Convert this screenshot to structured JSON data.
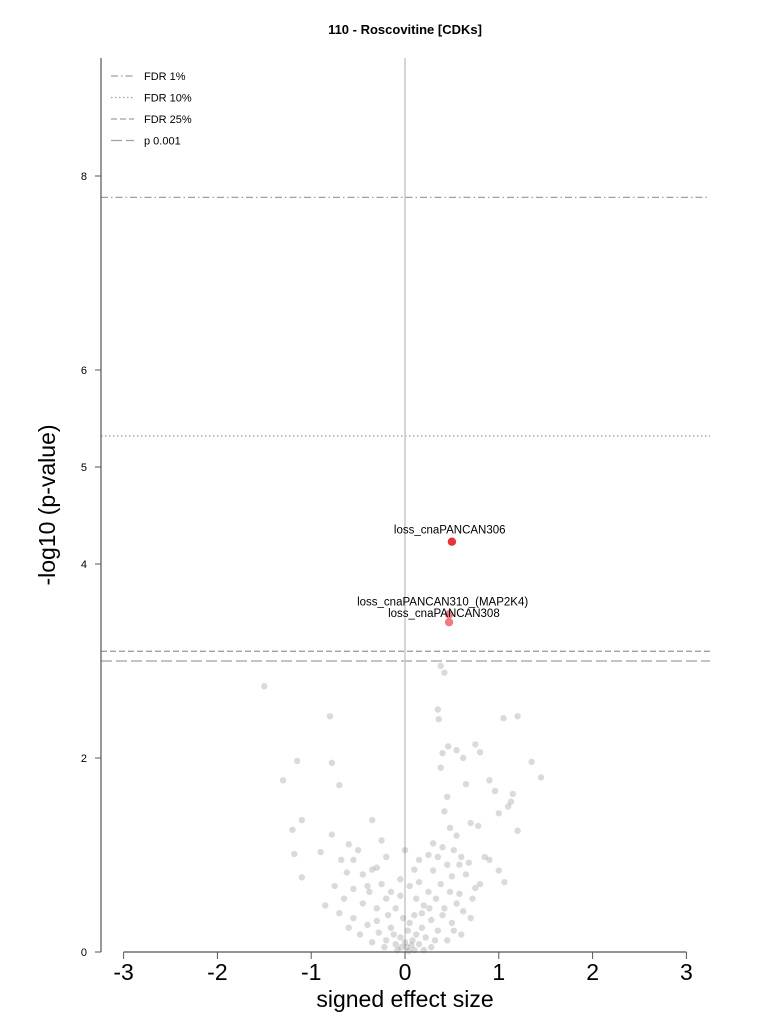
{
  "chart_data": {
    "type": "scatter",
    "title": "110 - Roscovitine [CDKs]",
    "xlabel": "signed effect size",
    "ylabel": "-log10 (p-value)",
    "xlim": [
      -3.2,
      3.25
    ],
    "ylim": [
      0,
      9.2
    ],
    "x_ticks": [
      -3,
      -2,
      -1,
      0,
      1,
      2,
      3
    ],
    "y_ticks": [
      0,
      2,
      4,
      5,
      6,
      8
    ],
    "grid": false,
    "legend_position": "top-left",
    "thresholds": [
      {
        "name": "FDR 1%",
        "y": 7.78,
        "style": "dashdot"
      },
      {
        "name": "FDR 10%",
        "y": 5.32,
        "style": "dotted"
      },
      {
        "name": "FDR 25%",
        "y": 3.1,
        "style": "dashed"
      },
      {
        "name": "p 0.001",
        "y": 3.0,
        "style": "longdash"
      }
    ],
    "zero_line_x": 0,
    "highlighted": [
      {
        "label": "loss_cnaPANCAN306",
        "x": 0.5,
        "y": 4.23,
        "color": "#e8323c"
      },
      {
        "label": "loss_cnaPANCAN310_(MAP2K4)",
        "x": 0.47,
        "y": 3.48,
        "color": "#f07a82"
      },
      {
        "label": "loss_cnaPANCAN308",
        "x": 0.47,
        "y": 3.4,
        "color": "#f07a82"
      }
    ],
    "points": [
      [
        -1.5,
        2.74
      ],
      [
        -0.8,
        2.43
      ],
      [
        -0.78,
        1.95
      ],
      [
        -0.7,
        1.72
      ],
      [
        -1.3,
        1.77
      ],
      [
        -1.15,
        1.97
      ],
      [
        -1.1,
        1.36
      ],
      [
        -1.2,
        1.26
      ],
      [
        -1.18,
        1.01
      ],
      [
        -1.1,
        0.77
      ],
      [
        -0.9,
        1.03
      ],
      [
        -0.85,
        0.48
      ],
      [
        -0.78,
        1.21
      ],
      [
        -0.6,
        1.11
      ],
      [
        -0.55,
        0.95
      ],
      [
        -0.35,
        1.36
      ],
      [
        -0.3,
        0.87
      ],
      [
        -0.25,
        1.15
      ],
      [
        -0.2,
        0.98
      ],
      [
        0.0,
        1.05
      ],
      [
        0.38,
        2.95
      ],
      [
        0.42,
        2.88
      ],
      [
        0.35,
        2.5
      ],
      [
        0.36,
        2.4
      ],
      [
        0.46,
        2.12
      ],
      [
        0.55,
        2.08
      ],
      [
        0.62,
        2.0
      ],
      [
        0.75,
        2.14
      ],
      [
        0.8,
        2.06
      ],
      [
        0.65,
        1.73
      ],
      [
        0.9,
        1.77
      ],
      [
        1.0,
        1.43
      ],
      [
        0.96,
        1.66
      ],
      [
        1.15,
        1.63
      ],
      [
        1.05,
        2.41
      ],
      [
        1.2,
        2.43
      ],
      [
        1.35,
        1.96
      ],
      [
        1.45,
        1.8
      ],
      [
        1.1,
        1.5
      ],
      [
        0.78,
        1.3
      ],
      [
        0.55,
        1.2
      ],
      [
        0.42,
        1.45
      ],
      [
        0.3,
        1.12
      ],
      [
        0.6,
        0.98
      ],
      [
        0.7,
        1.33
      ],
      [
        1.13,
        1.55
      ],
      [
        1.2,
        1.25
      ],
      [
        1.0,
        0.84
      ],
      [
        0.85,
        0.98
      ],
      [
        0.75,
        0.66
      ],
      [
        0.9,
        0.95
      ],
      [
        1.06,
        0.72
      ],
      [
        0.45,
        0.9
      ],
      [
        0.5,
        0.78
      ],
      [
        0.38,
        0.7
      ],
      [
        0.3,
        0.84
      ],
      [
        0.25,
        0.62
      ],
      [
        0.15,
        0.72
      ],
      [
        0.12,
        0.55
      ],
      [
        0.2,
        0.48
      ],
      [
        0.33,
        0.55
      ],
      [
        0.48,
        0.62
      ],
      [
        0.55,
        0.5
      ],
      [
        0.62,
        0.42
      ],
      [
        0.7,
        0.35
      ],
      [
        0.5,
        0.3
      ],
      [
        0.4,
        0.38
      ],
      [
        0.28,
        0.33
      ],
      [
        0.18,
        0.25
      ],
      [
        0.1,
        0.38
      ],
      [
        0.05,
        0.3
      ],
      [
        0.22,
        0.15
      ],
      [
        0.35,
        0.22
      ],
      [
        0.45,
        0.12
      ],
      [
        0.6,
        0.18
      ],
      [
        0.08,
        0.12
      ],
      [
        0.15,
        0.08
      ],
      [
        0.28,
        0.05
      ],
      [
        0.02,
        0.05
      ],
      [
        -0.05,
        0.15
      ],
      [
        -0.1,
        0.08
      ],
      [
        -0.15,
        0.25
      ],
      [
        -0.2,
        0.12
      ],
      [
        -0.28,
        0.2
      ],
      [
        -0.35,
        0.1
      ],
      [
        -0.4,
        0.28
      ],
      [
        -0.48,
        0.18
      ],
      [
        -0.55,
        0.35
      ],
      [
        -0.6,
        0.25
      ],
      [
        -0.7,
        0.4
      ],
      [
        -0.3,
        0.45
      ],
      [
        -0.2,
        0.55
      ],
      [
        -0.1,
        0.45
      ],
      [
        -0.38,
        0.62
      ],
      [
        -0.25,
        0.7
      ],
      [
        -0.45,
        0.5
      ],
      [
        -0.55,
        0.65
      ],
      [
        -0.65,
        0.55
      ],
      [
        -0.75,
        0.68
      ],
      [
        -0.35,
        0.85
      ],
      [
        -0.15,
        0.62
      ],
      [
        -0.05,
        0.58
      ],
      [
        -0.02,
        0.35
      ],
      [
        0.03,
        0.22
      ],
      [
        -0.08,
        0.02
      ],
      [
        0.04,
        0.01
      ],
      [
        0.1,
        0.02
      ],
      [
        -0.04,
        0.05
      ],
      [
        0.07,
        0.07
      ],
      [
        0.0,
        0.1
      ],
      [
        -0.12,
        0.18
      ],
      [
        0.12,
        0.18
      ],
      [
        0.18,
        0.4
      ],
      [
        0.26,
        0.45
      ],
      [
        -0.18,
        0.38
      ],
      [
        -0.22,
        0.05
      ],
      [
        0.2,
        0.02
      ],
      [
        0.32,
        0.12
      ],
      [
        -0.3,
        0.32
      ],
      [
        0.42,
        0.45
      ],
      [
        0.52,
        0.22
      ],
      [
        0.58,
        0.6
      ],
      [
        0.65,
        0.8
      ],
      [
        0.72,
        0.55
      ],
      [
        0.8,
        0.7
      ],
      [
        0.35,
        0.98
      ],
      [
        0.25,
        1.0
      ],
      [
        0.1,
        0.85
      ],
      [
        -0.05,
        0.75
      ],
      [
        0.05,
        0.68
      ],
      [
        0.15,
        0.95
      ],
      [
        0.4,
        1.08
      ],
      [
        0.48,
        1.28
      ],
      [
        0.52,
        1.05
      ],
      [
        0.58,
        0.9
      ],
      [
        0.68,
        0.92
      ],
      [
        0.45,
        1.6
      ],
      [
        0.38,
        1.9
      ],
      [
        0.4,
        2.05
      ],
      [
        -0.45,
        0.8
      ],
      [
        -0.5,
        1.05
      ],
      [
        -0.4,
        0.68
      ],
      [
        -0.62,
        0.82
      ],
      [
        -0.68,
        0.95
      ]
    ]
  }
}
